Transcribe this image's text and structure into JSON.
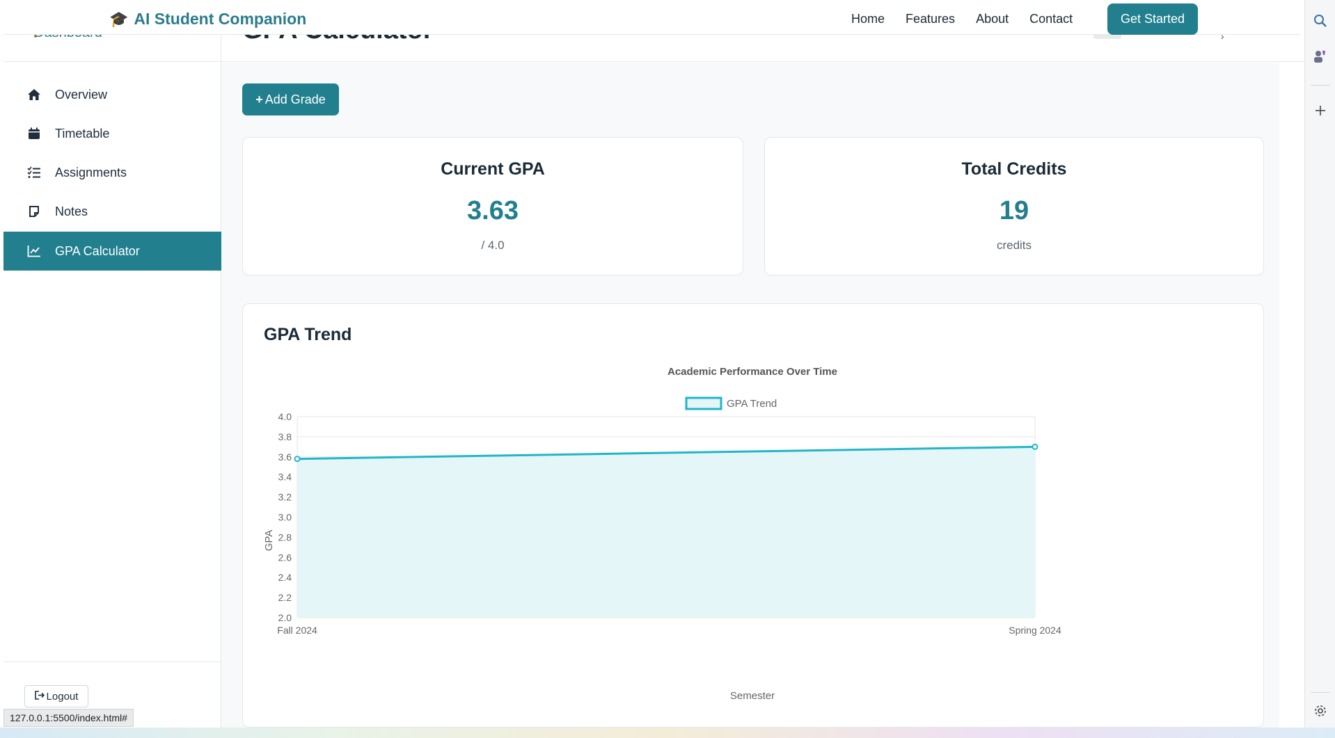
{
  "navbar": {
    "brand": "AI Student Companion",
    "links": [
      "Home",
      "Features",
      "About",
      "Contact"
    ],
    "cta": "Get Started"
  },
  "sidebar": {
    "header": "Dashboard",
    "items": [
      {
        "label": "Overview",
        "icon": "home-icon"
      },
      {
        "label": "Timetable",
        "icon": "calendar-icon"
      },
      {
        "label": "Assignments",
        "icon": "checklist-icon"
      },
      {
        "label": "Notes",
        "icon": "note-icon"
      },
      {
        "label": "GPA Calculator",
        "icon": "chart-line-icon",
        "active": true
      }
    ],
    "logout": "Logout"
  },
  "page": {
    "title": "GPA Calculator",
    "add_button": "Add Grade"
  },
  "stats": {
    "gpa": {
      "title": "Current GPA",
      "value": "3.63",
      "sub": "/ 4.0"
    },
    "credits": {
      "title": "Total Credits",
      "value": "19",
      "sub": "credits"
    }
  },
  "trend": {
    "heading": "GPA Trend"
  },
  "chart_data": {
    "type": "line",
    "title": "Academic Performance Over Time",
    "categories": [
      "Fall 2024",
      "Spring 2024"
    ],
    "series": [
      {
        "name": "GPA Trend",
        "values": [
          3.58,
          3.7
        ],
        "color": "#22b5c8",
        "fill": "#e4f6f7"
      }
    ],
    "xlabel": "Semester",
    "ylabel": "GPA",
    "ylim": [
      2.0,
      4.0
    ],
    "yticks": [
      "4.0",
      "3.8",
      "3.6",
      "3.4",
      "3.2",
      "3.0",
      "2.8",
      "2.6",
      "2.4",
      "2.2",
      "2.0"
    ],
    "grid": true,
    "legend": "top-center"
  },
  "status_url": "127.0.0.1:5500/index.html#",
  "colors": {
    "accent": "#217f8e",
    "line": "#22b5c8"
  }
}
